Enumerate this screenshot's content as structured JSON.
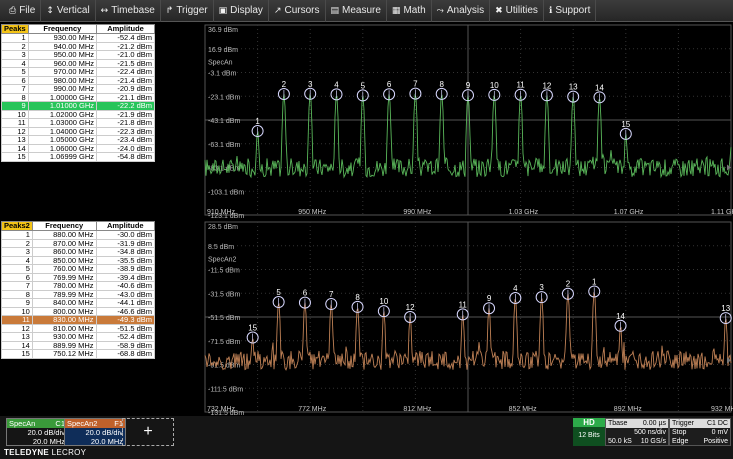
{
  "menu": [
    {
      "label": "File",
      "icon": "file-icon",
      "glyph": "⎙"
    },
    {
      "label": "Vertical",
      "icon": "vertical-icon",
      "glyph": "↕"
    },
    {
      "label": "Timebase",
      "icon": "timebase-icon",
      "glyph": "↔"
    },
    {
      "label": "Trigger",
      "icon": "trigger-icon",
      "glyph": "↱"
    },
    {
      "label": "Display",
      "icon": "display-icon",
      "glyph": "▣"
    },
    {
      "label": "Cursors",
      "icon": "cursors-icon",
      "glyph": "↗"
    },
    {
      "label": "Measure",
      "icon": "measure-icon",
      "glyph": "▤"
    },
    {
      "label": "Math",
      "icon": "math-icon",
      "glyph": "▦"
    },
    {
      "label": "Analysis",
      "icon": "analysis-icon",
      "glyph": "⤳"
    },
    {
      "label": "Utilities",
      "icon": "utilities-icon",
      "glyph": "✖"
    },
    {
      "label": "Support",
      "icon": "support-icon",
      "glyph": "ℹ"
    }
  ],
  "peaks1": {
    "title": "Peaks",
    "col_freq": "Frequency",
    "col_amp": "Amplitude",
    "selected": 9,
    "rows": [
      [
        "1",
        "930.00 MHz",
        "-52.4 dBm"
      ],
      [
        "2",
        "940.00 MHz",
        "-21.2 dBm"
      ],
      [
        "3",
        "950.00 MHz",
        "-21.0 dBm"
      ],
      [
        "4",
        "960.00 MHz",
        "-21.5 dBm"
      ],
      [
        "5",
        "970.00 MHz",
        "-22.4 dBm"
      ],
      [
        "6",
        "980.00 MHz",
        "-21.4 dBm"
      ],
      [
        "7",
        "990.00 MHz",
        "-20.9 dBm"
      ],
      [
        "8",
        "1.00000 GHz",
        "-21.1 dBm"
      ],
      [
        "9",
        "1.01000 GHz",
        "-22.2 dBm"
      ],
      [
        "10",
        "1.02000 GHz",
        "-21.9 dBm"
      ],
      [
        "11",
        "1.03000 GHz",
        "-21.8 dBm"
      ],
      [
        "12",
        "1.04000 GHz",
        "-22.3 dBm"
      ],
      [
        "13",
        "1.05000 GHz",
        "-23.4 dBm"
      ],
      [
        "14",
        "1.06000 GHz",
        "-24.0 dBm"
      ],
      [
        "15",
        "1.06999 GHz",
        "-54.8 dBm"
      ]
    ]
  },
  "peaks2": {
    "title": "Peaks2",
    "col_freq": "Frequency",
    "col_amp": "Amplitude",
    "selected": 11,
    "rows": [
      [
        "1",
        "880.00 MHz",
        "-30.0 dBm"
      ],
      [
        "2",
        "870.00 MHz",
        "-31.9 dBm"
      ],
      [
        "3",
        "860.00 MHz",
        "-34.8 dBm"
      ],
      [
        "4",
        "850.00 MHz",
        "-35.5 dBm"
      ],
      [
        "5",
        "760.00 MHz",
        "-38.9 dBm"
      ],
      [
        "6",
        "769.99 MHz",
        "-39.4 dBm"
      ],
      [
        "7",
        "780.00 MHz",
        "-40.6 dBm"
      ],
      [
        "8",
        "789.99 MHz",
        "-43.0 dBm"
      ],
      [
        "9",
        "840.00 MHz",
        "-44.1 dBm"
      ],
      [
        "10",
        "800.00 MHz",
        "-46.6 dBm"
      ],
      [
        "11",
        "830.00 MHz",
        "-49.3 dBm"
      ],
      [
        "12",
        "810.00 MHz",
        "-51.5 dBm"
      ],
      [
        "13",
        "930.00 MHz",
        "-52.4 dBm"
      ],
      [
        "14",
        "889.99 MHz",
        "-58.9 dBm"
      ],
      [
        "15",
        "750.12 MHz",
        "-68.8 dBm"
      ]
    ]
  },
  "chart_data": [
    {
      "type": "line",
      "trace": "SpecAn",
      "color": "#5fc15f",
      "reference_label": "SpecAn",
      "y_ticks": [
        "36.9 dBm",
        "16.9 dBm",
        "-3.1 dBm",
        "-23.1 dBm",
        "-43.1 dBm",
        "-63.1 dBm",
        "-83.1 dBm",
        "-103.1 dBm",
        "-123.1 dBm"
      ],
      "x_ticks": [
        "910 MHz",
        "950 MHz",
        "990 MHz",
        "1.03 GHz",
        "1.07 GHz",
        "1.11 GHz"
      ],
      "xlim_mhz": [
        910,
        1110
      ],
      "ylim": [
        -123.1,
        36.9
      ],
      "noise_floor_dbm": -83.1,
      "peaks": [
        {
          "n": "1",
          "x": 930,
          "y": -52.4
        },
        {
          "n": "2",
          "x": 940,
          "y": -21.2
        },
        {
          "n": "3",
          "x": 950,
          "y": -21.0
        },
        {
          "n": "4",
          "x": 960,
          "y": -21.5
        },
        {
          "n": "5",
          "x": 970,
          "y": -22.4
        },
        {
          "n": "6",
          "x": 980,
          "y": -21.4
        },
        {
          "n": "7",
          "x": 990,
          "y": -20.9
        },
        {
          "n": "8",
          "x": 1000,
          "y": -21.1
        },
        {
          "n": "9",
          "x": 1010,
          "y": -22.2
        },
        {
          "n": "10",
          "x": 1020,
          "y": -21.9
        },
        {
          "n": "11",
          "x": 1030,
          "y": -21.8
        },
        {
          "n": "12",
          "x": 1040,
          "y": -22.3
        },
        {
          "n": "13",
          "x": 1050,
          "y": -23.4
        },
        {
          "n": "14",
          "x": 1060,
          "y": -24.0
        },
        {
          "n": "15",
          "x": 1070,
          "y": -54.8
        }
      ]
    },
    {
      "type": "line",
      "trace": "SpecAn2",
      "color": "#c8875a",
      "reference_label": "SpecAn2",
      "y_ticks": [
        "28.5 dBm",
        "8.5 dBm",
        "-11.5 dBm",
        "-31.5 dBm",
        "-51.5 dBm",
        "-71.5 dBm",
        "-91.5 dBm",
        "-111.5 dBm",
        "-131.5 dBm"
      ],
      "x_ticks": [
        "732 MHz",
        "772 MHz",
        "812 MHz",
        "852 MHz",
        "892 MHz",
        "932 MHz"
      ],
      "xlim_mhz": [
        732,
        932
      ],
      "ylim": [
        -131.5,
        28.5
      ],
      "noise_floor_dbm": -88,
      "peaks": [
        {
          "n": "1",
          "x": 880,
          "y": -30.0
        },
        {
          "n": "2",
          "x": 870,
          "y": -31.9
        },
        {
          "n": "3",
          "x": 860,
          "y": -34.8
        },
        {
          "n": "4",
          "x": 850,
          "y": -35.5
        },
        {
          "n": "5",
          "x": 760,
          "y": -38.9
        },
        {
          "n": "6",
          "x": 770,
          "y": -39.4
        },
        {
          "n": "7",
          "x": 780,
          "y": -40.6
        },
        {
          "n": "8",
          "x": 790,
          "y": -43.0
        },
        {
          "n": "9",
          "x": 840,
          "y": -44.1
        },
        {
          "n": "10",
          "x": 800,
          "y": -46.6
        },
        {
          "n": "11",
          "x": 830,
          "y": -49.3
        },
        {
          "n": "12",
          "x": 810,
          "y": -51.5
        },
        {
          "n": "13",
          "x": 930,
          "y": -52.4
        },
        {
          "n": "14",
          "x": 890,
          "y": -58.9
        },
        {
          "n": "15",
          "x": 750.12,
          "y": -68.8
        }
      ]
    }
  ],
  "traces": {
    "t1": {
      "name": "SpecAn",
      "tag": "C1",
      "scale": "20.0 dB/div",
      "center": "20.0 MHz",
      "color": "#3a9a3a"
    },
    "t2": {
      "name": "SpecAn2",
      "tag": "F1",
      "scale": "20.0 dB/div",
      "center": "20.0 MHz",
      "color": "#c0612b"
    },
    "add_label": "+"
  },
  "status": {
    "hd": "HD",
    "bits": "12 Bits",
    "tbase_label": "Tbase",
    "tbase_val": "0.00 µs",
    "div_rate": "500 ns/div",
    "samples": "50.0 kS",
    "sample_rate": "10 GS/s",
    "trigger_label": "Trigger",
    "trigger_tags": "C1 DC",
    "trig_mode": "Stop",
    "trig_level": "0 mV",
    "trig_type": "Edge",
    "trig_slope": "Positive"
  },
  "brand": {
    "bold": "TELEDYNE",
    "thin": "LECROY"
  }
}
